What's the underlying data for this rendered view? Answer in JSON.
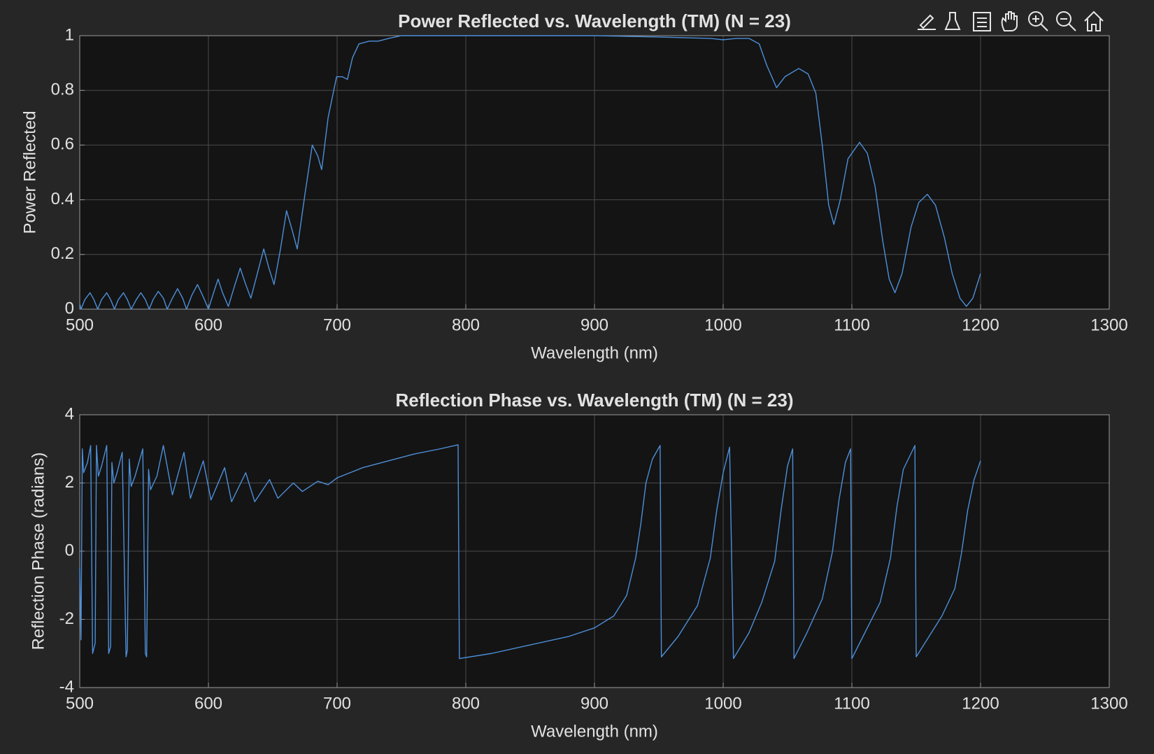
{
  "chart_data": [
    {
      "type": "line",
      "title": "Power Reflected vs. Wavelength (TM) (N = 23)",
      "x_label": "Wavelength (nm)",
      "y_label": "Power Reflected",
      "x": [
        500,
        501,
        504,
        508,
        511,
        514,
        517,
        521,
        524,
        527,
        530,
        534,
        537,
        540,
        544,
        547.5,
        551,
        554,
        557,
        561,
        565,
        568,
        572,
        576,
        580,
        583,
        587,
        591.5,
        596,
        600,
        604,
        607.5,
        611,
        615.5,
        620,
        624.7,
        629,
        633,
        638,
        643,
        647,
        651,
        656,
        660.7,
        665,
        669,
        675,
        680.7,
        685,
        688,
        693,
        699.6,
        704,
        708,
        712,
        717,
        725,
        732,
        740,
        750,
        800,
        900,
        950,
        990,
        1000,
        1010,
        1020,
        1028,
        1034,
        1041.5,
        1048,
        1058.7,
        1066,
        1072,
        1077,
        1082,
        1086,
        1091,
        1097,
        1106,
        1112,
        1118,
        1124,
        1129,
        1133.5,
        1139,
        1146,
        1152,
        1158.7,
        1165,
        1172,
        1178,
        1184,
        1189,
        1194,
        1200
      ],
      "values": [
        0.02,
        0,
        0.035,
        0.06,
        0.035,
        0,
        0.035,
        0.06,
        0.035,
        0,
        0.035,
        0.06,
        0.035,
        0,
        0.035,
        0.06,
        0.035,
        0,
        0.035,
        0.065,
        0.04,
        0,
        0.04,
        0.075,
        0.04,
        0,
        0.05,
        0.09,
        0.045,
        0,
        0.06,
        0.11,
        0.06,
        0.01,
        0.08,
        0.15,
        0.09,
        0.04,
        0.13,
        0.22,
        0.15,
        0.09,
        0.22,
        0.36,
        0.29,
        0.22,
        0.42,
        0.6,
        0.56,
        0.51,
        0.7,
        0.85,
        0.85,
        0.84,
        0.92,
        0.97,
        0.98,
        0.98,
        0.99,
        1,
        1,
        1,
        0.995,
        0.99,
        0.985,
        0.99,
        0.99,
        0.97,
        0.89,
        0.81,
        0.85,
        0.88,
        0.86,
        0.79,
        0.6,
        0.38,
        0.31,
        0.4,
        0.55,
        0.61,
        0.57,
        0.45,
        0.25,
        0.11,
        0.06,
        0.13,
        0.3,
        0.39,
        0.42,
        0.38,
        0.26,
        0.13,
        0.04,
        0.01,
        0.04,
        0.13
      ],
      "color": "#4d8fd9",
      "xlim": [
        500,
        1300
      ],
      "ylim": [
        0,
        1
      ],
      "xticks": [
        500,
        600,
        700,
        800,
        900,
        1000,
        1100,
        1200,
        1300
      ],
      "yticks": [
        0,
        0.2,
        0.4,
        0.6,
        0.8,
        1
      ],
      "grid": true
    },
    {
      "type": "line",
      "title": "Reflection Phase vs. Wavelength (TM) (N = 23)",
      "x_label": "Wavelength (nm)",
      "y_label": "Reflection Phase (radians)",
      "x": [
        500,
        501,
        502,
        503,
        506,
        508.5,
        510,
        512,
        513,
        514.5,
        517,
        521,
        522.5,
        524,
        525,
        526.5,
        529,
        533,
        536,
        537,
        538.5,
        540,
        543,
        549,
        551,
        552,
        553.5,
        555,
        560,
        565,
        572,
        581,
        586,
        596,
        602,
        612.6,
        618,
        629,
        636,
        647.5,
        654,
        666,
        673,
        685,
        693,
        700,
        710,
        720,
        740,
        760,
        780,
        794,
        795,
        820,
        850,
        880,
        900,
        915,
        925,
        932,
        936,
        940,
        945,
        951,
        952,
        965,
        980,
        990,
        995,
        1000,
        1005,
        1008,
        1020,
        1030,
        1040,
        1045,
        1050,
        1054,
        1055,
        1065,
        1077,
        1085,
        1090,
        1095,
        1099,
        1100,
        1110,
        1122,
        1130,
        1135,
        1140,
        1149,
        1150,
        1160,
        1170,
        1180,
        1185,
        1190,
        1195,
        1200
      ],
      "values": [
        -0.5,
        -2.6,
        3.0,
        2.3,
        2.6,
        3.1,
        -3.0,
        -2.7,
        3.1,
        2.2,
        2.5,
        3.1,
        -3.0,
        -2.8,
        2.6,
        2.0,
        2.3,
        2.9,
        -3.1,
        -2.9,
        2.7,
        1.9,
        2.2,
        3.0,
        -3.0,
        -3.1,
        2.4,
        1.8,
        2.2,
        3.1,
        1.65,
        2.9,
        1.55,
        2.65,
        1.5,
        2.45,
        1.45,
        2.3,
        1.45,
        2.1,
        1.55,
        2.0,
        1.75,
        2.05,
        1.95,
        2.15,
        2.3,
        2.45,
        2.65,
        2.85,
        3.0,
        3.12,
        -3.15,
        -3.0,
        -2.75,
        -2.5,
        -2.25,
        -1.9,
        -1.3,
        -0.2,
        0.8,
        2.0,
        2.7,
        3.1,
        -3.1,
        -2.5,
        -1.6,
        -0.2,
        1.2,
        2.3,
        3.05,
        -3.15,
        -2.4,
        -1.5,
        -0.3,
        1.2,
        2.5,
        3.0,
        -3.15,
        -2.4,
        -1.4,
        0,
        1.5,
        2.6,
        3.0,
        -3.15,
        -2.4,
        -1.5,
        -0.2,
        1.3,
        2.4,
        3.1,
        -3.1,
        -2.5,
        -1.9,
        -1.1,
        -0.1,
        1.2,
        2.1,
        2.65
      ],
      "color": "#4d8fd9",
      "xlim": [
        500,
        1300
      ],
      "ylim": [
        -4,
        4
      ],
      "xticks": [
        500,
        600,
        700,
        800,
        900,
        1000,
        1100,
        1200,
        1300
      ],
      "yticks": [
        -4,
        -2,
        0,
        2,
        4
      ],
      "grid": true
    }
  ]
}
